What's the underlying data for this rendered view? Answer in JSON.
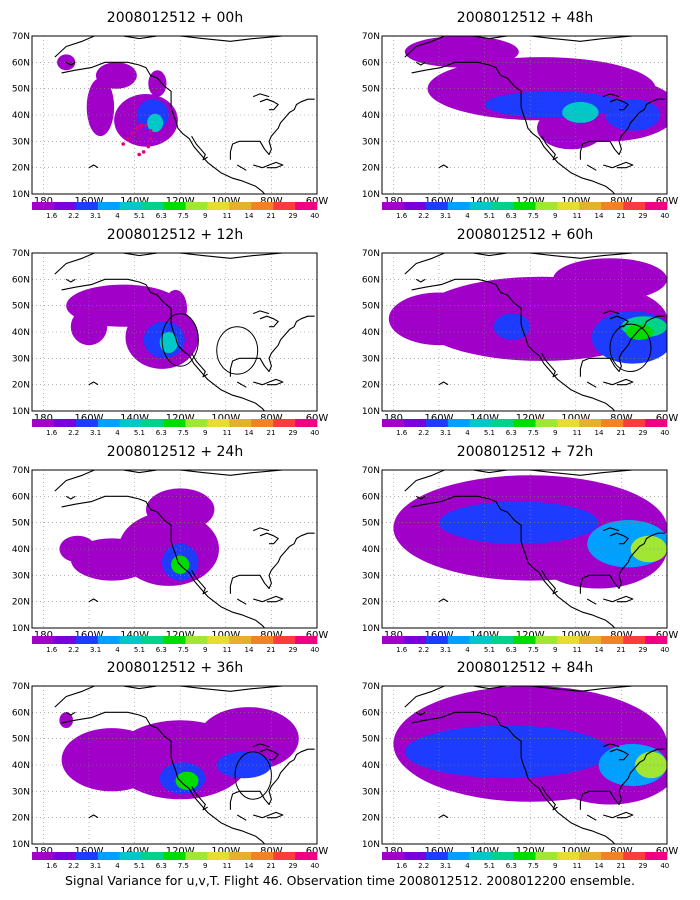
{
  "figure": {
    "caption": "Signal Variance for u,v,T. Flight 46. Observation time 2008012512. 2008012200 ensemble.",
    "y_ticks": [
      "70N",
      "60N",
      "50N",
      "40N",
      "30N",
      "20N",
      "10N"
    ],
    "x_ticks": [
      "180",
      "160W",
      "140W",
      "120W",
      "100W",
      "80W",
      "60W"
    ],
    "colorbar": {
      "labels": [
        "1.6",
        "2.2",
        "3.1",
        "4",
        "5.1",
        "6.3",
        "7.5",
        "9",
        "11",
        "14",
        "21",
        "29",
        "40"
      ],
      "colors": [
        "#a000c8",
        "#7800dc",
        "#1e3cff",
        "#00a0ff",
        "#00c8c8",
        "#00d28c",
        "#00dc00",
        "#a0e632",
        "#e6dc32",
        "#e6af2d",
        "#f08228",
        "#fa3c3c",
        "#f00082"
      ]
    },
    "lon_range": [
      175,
      300
    ],
    "lat_range": [
      10,
      70
    ]
  },
  "panels": [
    {
      "title": "2008012512 + 00h",
      "blobs": [
        {
          "lon": 225,
          "lat": 38,
          "rlon": 14,
          "rlat": 10,
          "level": 0
        },
        {
          "lon": 205,
          "lat": 43,
          "rlon": 6,
          "rlat": 11,
          "level": 0
        },
        {
          "lon": 212,
          "lat": 55,
          "rlon": 9,
          "rlat": 5,
          "level": 0
        },
        {
          "lon": 230,
          "lat": 52,
          "rlon": 4,
          "rlat": 5,
          "level": 0
        },
        {
          "lon": 190,
          "lat": 60,
          "rlon": 4,
          "rlat": 3,
          "level": 0
        },
        {
          "lon": 228,
          "lat": 40,
          "rlon": 7,
          "rlat": 6,
          "level": 2
        },
        {
          "lon": 229,
          "lat": 37,
          "rlon": 3.5,
          "rlat": 3.5,
          "level": 4
        }
      ],
      "dots": [
        {
          "lon": 221,
          "lat": 35
        },
        {
          "lon": 219,
          "lat": 33
        },
        {
          "lon": 217,
          "lat": 31
        },
        {
          "lon": 215,
          "lat": 29
        },
        {
          "lon": 223,
          "lat": 36
        },
        {
          "lon": 225,
          "lat": 36
        },
        {
          "lon": 227,
          "lat": 34
        },
        {
          "lon": 227,
          "lat": 31
        },
        {
          "lon": 226,
          "lat": 28
        },
        {
          "lon": 224,
          "lat": 26
        },
        {
          "lon": 222,
          "lat": 25
        }
      ],
      "circles": []
    },
    {
      "title": "2008012512 + 48h",
      "blobs": [
        {
          "lon": 245,
          "lat": 50,
          "rlon": 50,
          "rlat": 12,
          "level": 0
        },
        {
          "lon": 275,
          "lat": 42,
          "rlon": 30,
          "rlat": 12,
          "level": 0
        },
        {
          "lon": 210,
          "lat": 64,
          "rlon": 25,
          "rlat": 6,
          "level": 0
        },
        {
          "lon": 258,
          "lat": 35,
          "rlon": 15,
          "rlat": 8,
          "level": 0
        },
        {
          "lon": 250,
          "lat": 44,
          "rlon": 30,
          "rlat": 5,
          "level": 2
        },
        {
          "lon": 285,
          "lat": 40,
          "rlon": 12,
          "rlat": 6,
          "level": 2
        },
        {
          "lon": 262,
          "lat": 41,
          "rlon": 8,
          "rlat": 4,
          "level": 4
        }
      ],
      "dots": [],
      "circles": []
    },
    {
      "title": "2008012512 + 12h",
      "blobs": [
        {
          "lon": 232,
          "lat": 38,
          "rlon": 16,
          "rlat": 12,
          "level": 0
        },
        {
          "lon": 215,
          "lat": 50,
          "rlon": 25,
          "rlat": 8,
          "level": 0
        },
        {
          "lon": 200,
          "lat": 42,
          "rlon": 8,
          "rlat": 7,
          "level": 0
        },
        {
          "lon": 238,
          "lat": 49,
          "rlon": 5,
          "rlat": 7,
          "level": 0
        },
        {
          "lon": 233,
          "lat": 37,
          "rlon": 9,
          "rlat": 7,
          "level": 2
        },
        {
          "lon": 235,
          "lat": 36,
          "rlon": 4,
          "rlat": 4,
          "level": 4
        }
      ],
      "dots": [],
      "circles": [
        {
          "lon": 240,
          "lat": 37,
          "rlon": 8,
          "rlat": 10
        },
        {
          "lon": 265,
          "lat": 33,
          "rlon": 9,
          "rlat": 9
        }
      ]
    },
    {
      "title": "2008012512 + 60h",
      "blobs": [
        {
          "lon": 245,
          "lat": 45,
          "rlon": 55,
          "rlat": 16,
          "level": 0
        },
        {
          "lon": 200,
          "lat": 45,
          "rlon": 22,
          "rlat": 10,
          "level": 0
        },
        {
          "lon": 275,
          "lat": 60,
          "rlon": 25,
          "rlat": 8,
          "level": 0
        },
        {
          "lon": 285,
          "lat": 38,
          "rlon": 18,
          "rlat": 10,
          "level": 2
        },
        {
          "lon": 232,
          "lat": 42,
          "rlon": 8,
          "rlat": 5,
          "level": 2
        },
        {
          "lon": 290,
          "lat": 42,
          "rlon": 10,
          "rlat": 4,
          "level": 5
        },
        {
          "lon": 288,
          "lat": 40,
          "rlon": 6,
          "rlat": 3,
          "level": 6
        }
      ],
      "dots": [],
      "circles": [
        {
          "lon": 284,
          "lat": 34,
          "rlon": 9,
          "rlat": 9
        }
      ]
    },
    {
      "title": "2008012512 + 24h",
      "blobs": [
        {
          "lon": 235,
          "lat": 40,
          "rlon": 22,
          "rlat": 14,
          "level": 0
        },
        {
          "lon": 210,
          "lat": 36,
          "rlon": 18,
          "rlat": 8,
          "level": 0
        },
        {
          "lon": 240,
          "lat": 55,
          "rlon": 15,
          "rlat": 8,
          "level": 0
        },
        {
          "lon": 195,
          "lat": 40,
          "rlon": 8,
          "rlat": 5,
          "level": 0
        },
        {
          "lon": 240,
          "lat": 35,
          "rlon": 8,
          "rlat": 7,
          "level": 2
        },
        {
          "lon": 240,
          "lat": 34,
          "rlon": 4,
          "rlat": 3.5,
          "level": 6
        }
      ],
      "dots": [],
      "circles": []
    },
    {
      "title": "2008012512 + 72h",
      "blobs": [
        {
          "lon": 240,
          "lat": 48,
          "rlon": 60,
          "rlat": 20,
          "level": 0
        },
        {
          "lon": 270,
          "lat": 40,
          "rlon": 30,
          "rlat": 15,
          "level": 0
        },
        {
          "lon": 235,
          "lat": 50,
          "rlon": 35,
          "rlat": 8,
          "level": 2
        },
        {
          "lon": 283,
          "lat": 42,
          "rlon": 18,
          "rlat": 9,
          "level": 3
        },
        {
          "lon": 292,
          "lat": 40,
          "rlon": 8,
          "rlat": 5,
          "level": 7
        }
      ],
      "dots": [],
      "circles": []
    },
    {
      "title": "2008012512 + 36h",
      "blobs": [
        {
          "lon": 240,
          "lat": 42,
          "rlon": 30,
          "rlat": 15,
          "level": 0
        },
        {
          "lon": 210,
          "lat": 42,
          "rlon": 22,
          "rlat": 12,
          "level": 0
        },
        {
          "lon": 270,
          "lat": 50,
          "rlon": 22,
          "rlat": 12,
          "level": 0
        },
        {
          "lon": 190,
          "lat": 57,
          "rlon": 3,
          "rlat": 3,
          "level": 0
        },
        {
          "lon": 241,
          "lat": 35,
          "rlon": 10,
          "rlat": 6,
          "level": 2
        },
        {
          "lon": 268,
          "lat": 40,
          "rlon": 12,
          "rlat": 5,
          "level": 2
        },
        {
          "lon": 243,
          "lat": 34,
          "rlon": 5,
          "rlat": 3.5,
          "level": 6
        }
      ],
      "dots": [],
      "circles": [
        {
          "lon": 272,
          "lat": 36,
          "rlon": 8,
          "rlat": 9
        }
      ]
    },
    {
      "title": "2008012512 + 84h",
      "blobs": [
        {
          "lon": 240,
          "lat": 48,
          "rlon": 60,
          "rlat": 22,
          "level": 0
        },
        {
          "lon": 275,
          "lat": 40,
          "rlon": 30,
          "rlat": 15,
          "level": 0
        },
        {
          "lon": 230,
          "lat": 45,
          "rlon": 45,
          "rlat": 10,
          "level": 2
        },
        {
          "lon": 285,
          "lat": 40,
          "rlon": 15,
          "rlat": 8,
          "level": 3
        },
        {
          "lon": 293,
          "lat": 40,
          "rlon": 7,
          "rlat": 5,
          "level": 7
        }
      ],
      "dots": [],
      "circles": []
    }
  ]
}
